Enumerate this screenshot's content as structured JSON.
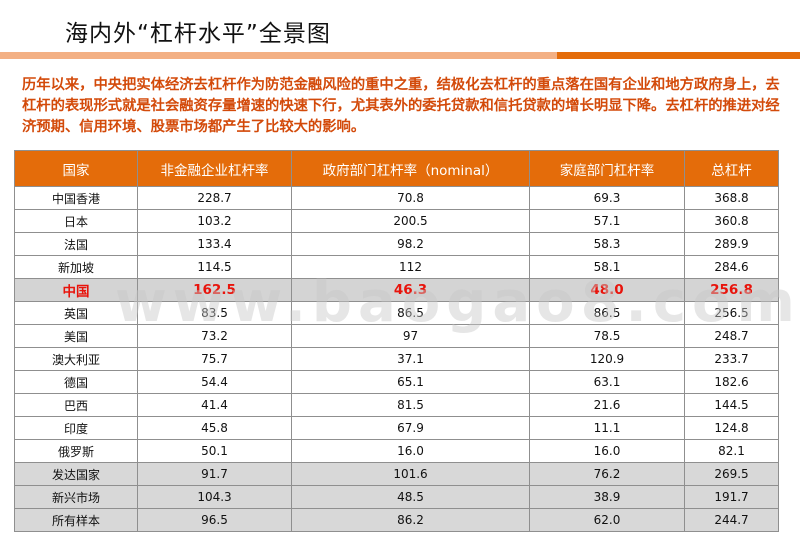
{
  "title": "海内外“杠杆水平”全景图",
  "intro": "历年以来，中央把实体经济去杠杆作为防范金融风险的重中之重，结极化去杠杆的重点落在国有企业和地方政府身上，去杠杆的表现形式就是社会融资存量增速的快速下行，尤其表外的委托贷款和信托贷款的增长明显下降。去杠杆的推进对经济预期、信用环境、股票市场都产生了比较大的影响。",
  "watermark": "www.baogao8.com",
  "colors": {
    "accent": "#e46c0a",
    "accent_light": "#f3b084",
    "highlight_text": "#e8140c",
    "intro_text": "#d34a0a"
  },
  "table": {
    "headers": [
      "国家",
      "非金融企业杠杆率",
      "政府部门杠杆率（nominal）",
      "家庭部门杠杆率",
      "总杠杆"
    ],
    "rows": [
      [
        "中国香港",
        "228.7",
        "70.8",
        "69.3",
        "368.8"
      ],
      [
        "日本",
        "103.2",
        "200.5",
        "57.1",
        "360.8"
      ],
      [
        "法国",
        "133.4",
        "98.2",
        "58.3",
        "289.9"
      ],
      [
        "新加坡",
        "114.5",
        "112",
        "58.1",
        "284.6"
      ],
      [
        "中国",
        "162.5",
        "46.3",
        "48.0",
        "256.8"
      ],
      [
        "英国",
        "83.5",
        "86.5",
        "86.5",
        "256.5"
      ],
      [
        "美国",
        "73.2",
        "97",
        "78.5",
        "248.7"
      ],
      [
        "澳大利亚",
        "75.7",
        "37.1",
        "120.9",
        "233.7"
      ],
      [
        "德国",
        "54.4",
        "65.1",
        "63.1",
        "182.6"
      ],
      [
        "巴西",
        "41.4",
        "81.5",
        "21.6",
        "144.5"
      ],
      [
        "印度",
        "45.8",
        "67.9",
        "11.1",
        "124.8"
      ],
      [
        "俄罗斯",
        "50.1",
        "16.0",
        "16.0",
        "82.1"
      ],
      [
        "发达国家",
        "91.7",
        "101.6",
        "76.2",
        "269.5"
      ],
      [
        "新兴市场",
        "104.3",
        "48.5",
        "38.9",
        "191.7"
      ],
      [
        "所有样本",
        "96.5",
        "86.2",
        "62.0",
        "244.7"
      ]
    ]
  }
}
